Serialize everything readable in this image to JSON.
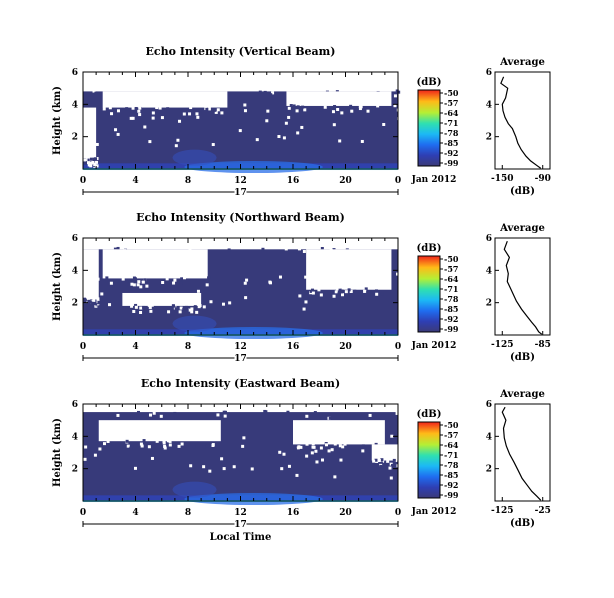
{
  "chart_data": [
    {
      "type": "heatmap",
      "title": "Echo Intensity (Vertical Beam)",
      "ylabel": "Height (km)",
      "x_ticks": [
        "0",
        "4",
        "8",
        "12",
        "16",
        "20",
        "0"
      ],
      "y_ticks": [
        "6",
        "4",
        "2"
      ],
      "date_axis": {
        "day": "17",
        "month_year": "Jan 2012"
      },
      "colorbar": {
        "unit": "(dB)",
        "ticks": [
          "-50",
          "-57",
          "-64",
          "-71",
          "-78",
          "-85",
          "-92",
          "-99"
        ]
      },
      "xlim": [
        0,
        24
      ],
      "ylim": [
        0,
        6
      ],
      "white_pattern": [
        {
          "x0": 0,
          "x1": 24,
          "y0": 4.8,
          "y1": 6
        },
        {
          "x0": 1.5,
          "x1": 11,
          "y0": 3.8,
          "y1": 4.8
        },
        {
          "x0": 15.5,
          "x1": 23.5,
          "y0": 3.9,
          "y1": 4.8
        },
        {
          "x0": 0,
          "x1": 1,
          "y0": 0.6,
          "y1": 3.8
        }
      ],
      "average_profile": {
        "title": "Average",
        "xlabel": "(dB)",
        "x_ticks": [
          "-150",
          "-90"
        ],
        "y_ticks": [
          "6",
          "4",
          "2"
        ],
        "points": [
          [
            -148,
            5.7
          ],
          [
            -152,
            5.3
          ],
          [
            -142,
            5.0
          ],
          [
            -145,
            4.4
          ],
          [
            -150,
            4.0
          ],
          [
            -149,
            3.6
          ],
          [
            -146,
            3.2
          ],
          [
            -141,
            2.8
          ],
          [
            -135,
            2.5
          ],
          [
            -130,
            2.0
          ],
          [
            -127,
            1.6
          ],
          [
            -122,
            1.2
          ],
          [
            -115,
            0.8
          ],
          [
            -108,
            0.5
          ],
          [
            -98,
            0.2
          ],
          [
            -93,
            0.05
          ]
        ]
      }
    },
    {
      "type": "heatmap",
      "title": "Echo Intensity (Northward Beam)",
      "ylabel": "Height (km)",
      "x_ticks": [
        "0",
        "4",
        "8",
        "12",
        "16",
        "20",
        "0"
      ],
      "y_ticks": [
        "6",
        "4",
        "2"
      ],
      "date_axis": {
        "day": "17",
        "month_year": "Jan 2012"
      },
      "colorbar": {
        "unit": "(dB)",
        "ticks": [
          "-50",
          "-57",
          "-64",
          "-71",
          "-78",
          "-85",
          "-92",
          "-99"
        ]
      },
      "xlim": [
        0,
        24
      ],
      "ylim": [
        0,
        6
      ],
      "white_pattern": [
        {
          "x0": 0,
          "x1": 24,
          "y0": 5.3,
          "y1": 6
        },
        {
          "x0": 1.5,
          "x1": 9.5,
          "y0": 3.5,
          "y1": 5.3
        },
        {
          "x0": 17,
          "x1": 23.5,
          "y0": 2.8,
          "y1": 5.3
        },
        {
          "x0": 0,
          "x1": 1.2,
          "y0": 2.2,
          "y1": 5.3
        },
        {
          "x0": 3,
          "x1": 9,
          "y0": 1.8,
          "y1": 2.6
        }
      ],
      "average_profile": {
        "title": "Average",
        "xlabel": "(dB)",
        "x_ticks": [
          "-125",
          "-85"
        ],
        "y_ticks": [
          "6",
          "4",
          "2"
        ],
        "points": [
          [
            -120,
            5.8
          ],
          [
            -123,
            5.3
          ],
          [
            -118,
            4.8
          ],
          [
            -121,
            4.3
          ],
          [
            -119,
            3.8
          ],
          [
            -120,
            3.3
          ],
          [
            -117,
            2.9
          ],
          [
            -114,
            2.5
          ],
          [
            -111,
            2.1
          ],
          [
            -106,
            1.6
          ],
          [
            -101,
            1.2
          ],
          [
            -96,
            0.8
          ],
          [
            -92,
            0.5
          ],
          [
            -89,
            0.2
          ],
          [
            -86,
            0.05
          ]
        ]
      }
    },
    {
      "type": "heatmap",
      "title": "Echo Intensity (Eastward Beam)",
      "ylabel": "Height (km)",
      "x_ticks": [
        "0",
        "4",
        "8",
        "12",
        "16",
        "20",
        "0"
      ],
      "y_ticks": [
        "6",
        "4",
        "2"
      ],
      "date_axis": {
        "day": "17",
        "month_year": "Jan 2012",
        "xlabel": "Local Time"
      },
      "colorbar": {
        "unit": "(dB)",
        "ticks": [
          "-50",
          "-57",
          "-64",
          "-71",
          "-78",
          "-85",
          "-92",
          "-99"
        ]
      },
      "xlim": [
        0,
        24
      ],
      "ylim": [
        0,
        6
      ],
      "white_pattern": [
        {
          "x0": 0,
          "x1": 24,
          "y0": 5.5,
          "y1": 6
        },
        {
          "x0": 1.2,
          "x1": 10.5,
          "y0": 3.7,
          "y1": 5.0
        },
        {
          "x0": 16,
          "x1": 23,
          "y0": 3.5,
          "y1": 5.0
        },
        {
          "x0": 22,
          "x1": 24,
          "y0": 2.5,
          "y1": 3.5
        }
      ],
      "average_profile": {
        "title": "Average",
        "xlabel": "(dB)",
        "x_ticks": [
          "-125",
          "-25"
        ],
        "y_ticks": [
          "6",
          "4",
          "2"
        ],
        "points": [
          [
            -118,
            5.8
          ],
          [
            -125,
            5.5
          ],
          [
            -116,
            5.0
          ],
          [
            -122,
            4.5
          ],
          [
            -120,
            3.9
          ],
          [
            -115,
            3.4
          ],
          [
            -107,
            2.9
          ],
          [
            -96,
            2.4
          ],
          [
            -86,
            1.9
          ],
          [
            -76,
            1.4
          ],
          [
            -64,
            1.0
          ],
          [
            -52,
            0.6
          ],
          [
            -40,
            0.3
          ],
          [
            -30,
            0.05
          ]
        ]
      }
    }
  ]
}
